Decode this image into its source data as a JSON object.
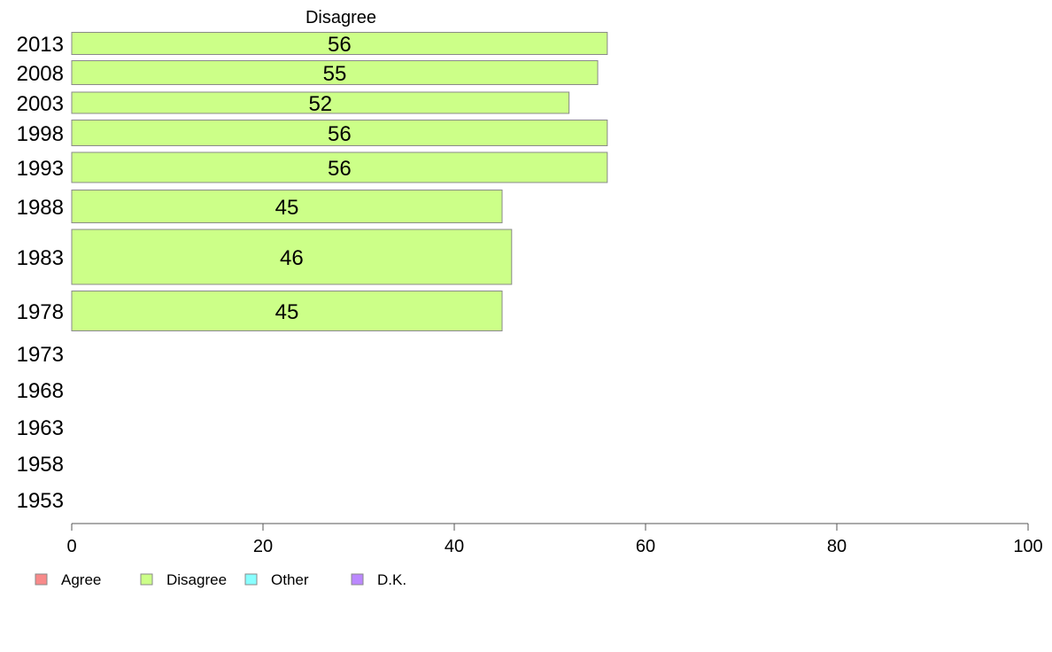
{
  "chart_data": {
    "type": "bar",
    "orientation": "horizontal",
    "column_header": "Disagree",
    "categories": [
      "2013",
      "2008",
      "2003",
      "1998",
      "1993",
      "1988",
      "1983",
      "1978",
      "1973",
      "1968",
      "1963",
      "1958",
      "1953"
    ],
    "series": [
      {
        "name": "Agree",
        "color": "#f88a8a",
        "values": [
          null,
          null,
          null,
          null,
          null,
          null,
          null,
          null,
          null,
          null,
          null,
          null,
          null
        ]
      },
      {
        "name": "Disagree",
        "color": "#ccff88",
        "values": [
          56,
          55,
          52,
          56,
          56,
          45,
          46,
          45,
          null,
          null,
          null,
          null,
          null
        ]
      },
      {
        "name": "Other",
        "color": "#88ffff",
        "values": [
          null,
          null,
          null,
          null,
          null,
          null,
          null,
          null,
          null,
          null,
          null,
          null,
          null
        ]
      },
      {
        "name": "D.K.",
        "color": "#bb88ff",
        "values": [
          null,
          null,
          null,
          null,
          null,
          null,
          null,
          null,
          null,
          null,
          null,
          null,
          null
        ]
      }
    ],
    "xlim": [
      0,
      100
    ],
    "xticks": [
      "0",
      "20",
      "40",
      "60",
      "80",
      "100"
    ],
    "legend_position": "bottom-left",
    "grid": false
  }
}
